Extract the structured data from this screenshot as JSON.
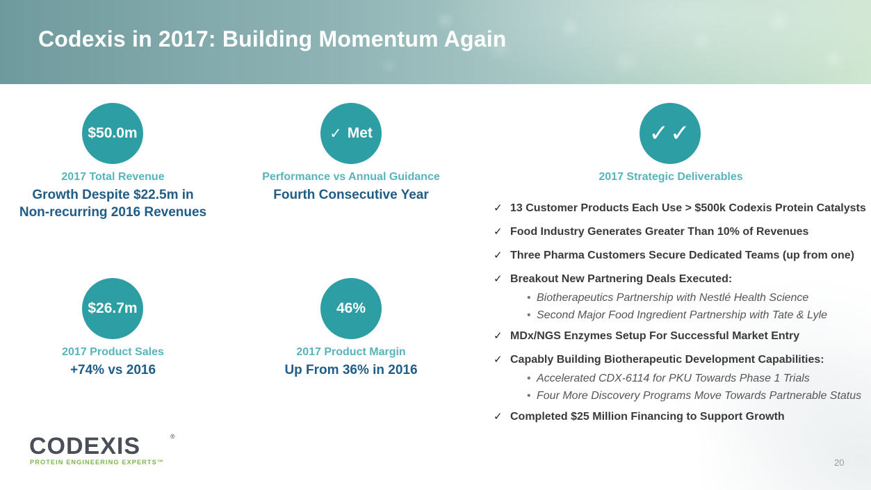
{
  "slide": {
    "title": "Codexis in 2017:  Building Momentum Again",
    "page_number": "20"
  },
  "metrics": {
    "revenue": {
      "value": "$50.0m",
      "label": "2017 Total Revenue",
      "sub_line1": "Growth Despite $22.5m in",
      "sub_line2": "Non-recurring 2016 Revenues"
    },
    "guidance": {
      "check": "✓",
      "value": "Met",
      "label": "Performance vs Annual Guidance",
      "sub": "Fourth Consecutive Year"
    },
    "strategic": {
      "value": "✓✓",
      "label": "2017 Strategic Deliverables"
    },
    "product_sales": {
      "value": "$26.7m",
      "label": "2017 Product Sales",
      "sub": "+74% vs 2016"
    },
    "product_margin": {
      "value": "46%",
      "label": "2017 Product Margin",
      "sub": "Up From 36% in 2016"
    }
  },
  "deliverables": [
    {
      "text": "13 Customer Products Each Use > $500k Codexis Protein Catalysts"
    },
    {
      "text": "Food Industry Generates Greater Than 10% of Revenues"
    },
    {
      "text": "Three Pharma Customers Secure Dedicated Teams (up from one)"
    },
    {
      "text": "Breakout New Partnering Deals Executed:",
      "subs": [
        "Biotherapeutics Partnership with Nestlé Health Science",
        "Second Major Food Ingredient Partnership with Tate & Lyle"
      ]
    },
    {
      "text": "MDx/NGS Enzymes Setup For Successful Market Entry"
    },
    {
      "text": "Capably Building Biotherapeutic Development Capabilities:",
      "subs": [
        "Accelerated CDX-6114 for PKU Towards Phase 1 Trials",
        "Four More Discovery Programs Move Towards Partnerable Status"
      ]
    },
    {
      "text": "Completed $25 Million Financing to Support Growth"
    }
  ],
  "logo": {
    "wordmark": "CODEXIS",
    "registered": "®",
    "tagline": "PROTEIN ENGINEERING EXPERTS™",
    "colors": {
      "wordmark": "#4a4f57",
      "accent": "#7ab648"
    }
  },
  "icons": {
    "check": "check-icon"
  },
  "colors": {
    "circle": "#2c9ea4",
    "label": "#56b4ba",
    "sub": "#1f5c87"
  }
}
